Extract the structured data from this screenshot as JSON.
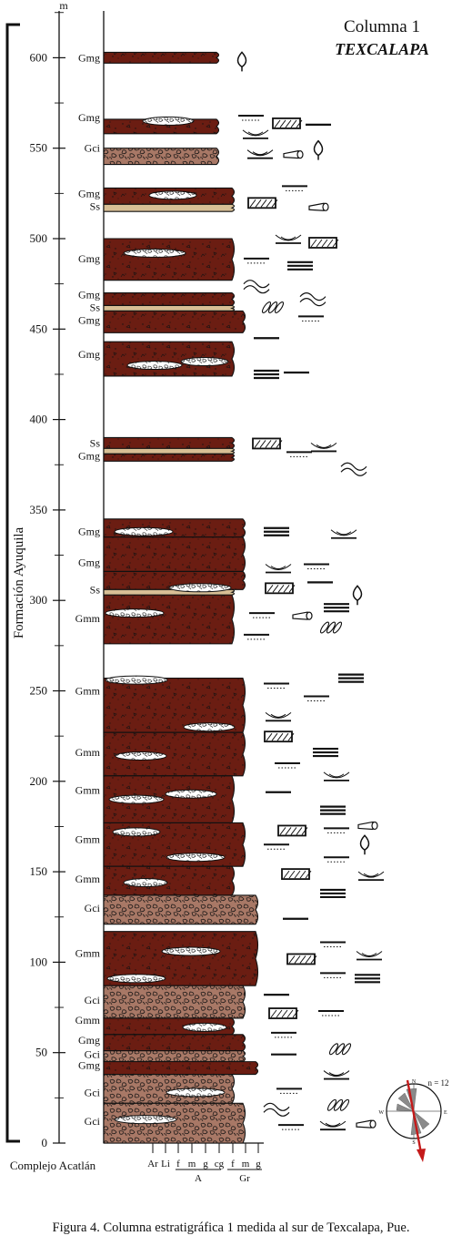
{
  "title": {
    "line1": "Columna 1",
    "line2": "TEXCALAPA"
  },
  "axis": {
    "unit": "m",
    "ticks": [
      "0",
      "50",
      "100",
      "150",
      "200",
      "250",
      "300",
      "350",
      "400",
      "450",
      "500",
      "550",
      "600"
    ],
    "formation_label": "Formación Ayuquila",
    "basement_label": "Complejo Acatlán"
  },
  "grain_scale": {
    "sand_ticks": [
      "Ar",
      "Li",
      "f",
      "m",
      "g",
      "cg"
    ],
    "gravel_ticks": [
      "f",
      "m",
      "g"
    ],
    "sand_group": "A",
    "gravel_group": "Gr"
  },
  "facies_labels": [
    {
      "text": "Gmg",
      "m": 600
    },
    {
      "text": "Gmg",
      "m": 567
    },
    {
      "text": "Gci",
      "m": 550
    },
    {
      "text": "Gmg",
      "m": 525
    },
    {
      "text": "Ss",
      "m": 518
    },
    {
      "text": "Gmg",
      "m": 489
    },
    {
      "text": "Gmg",
      "m": 469
    },
    {
      "text": "Ss",
      "m": 462
    },
    {
      "text": "Gmg",
      "m": 455
    },
    {
      "text": "Gmg",
      "m": 436
    },
    {
      "text": "Ss",
      "m": 387
    },
    {
      "text": "Gmg",
      "m": 380
    },
    {
      "text": "Gmg",
      "m": 338
    },
    {
      "text": "Gmg",
      "m": 321
    },
    {
      "text": "Ss",
      "m": 306
    },
    {
      "text": "Gmm",
      "m": 290
    },
    {
      "text": "Gmm",
      "m": 250
    },
    {
      "text": "Gmm",
      "m": 216
    },
    {
      "text": "Gmm",
      "m": 195
    },
    {
      "text": "Gmm",
      "m": 168
    },
    {
      "text": "Gmm",
      "m": 146
    },
    {
      "text": "Gci",
      "m": 130
    },
    {
      "text": "Gmm",
      "m": 105
    },
    {
      "text": "Gci",
      "m": 79
    },
    {
      "text": "Gmm",
      "m": 68
    },
    {
      "text": "Gmg",
      "m": 57
    },
    {
      "text": "Gci",
      "m": 49
    },
    {
      "text": "Gmg",
      "m": 43
    },
    {
      "text": "Gci",
      "m": 28
    },
    {
      "text": "Gci",
      "m": 12
    }
  ],
  "rose": {
    "n_label": "n = 12",
    "north": "N",
    "south": "S",
    "east": "E",
    "west": "W"
  },
  "colors": {
    "conglomerate": "#6b1d12",
    "clast_supported": "#a87866",
    "sandstone": "#d8bf95",
    "arrow": "#c41a1a",
    "rose_petal": "#8a8a8a"
  },
  "caption": "Figura 4. Columna estratigráfica 1 medida al sur de Texcalapa, Pue."
}
